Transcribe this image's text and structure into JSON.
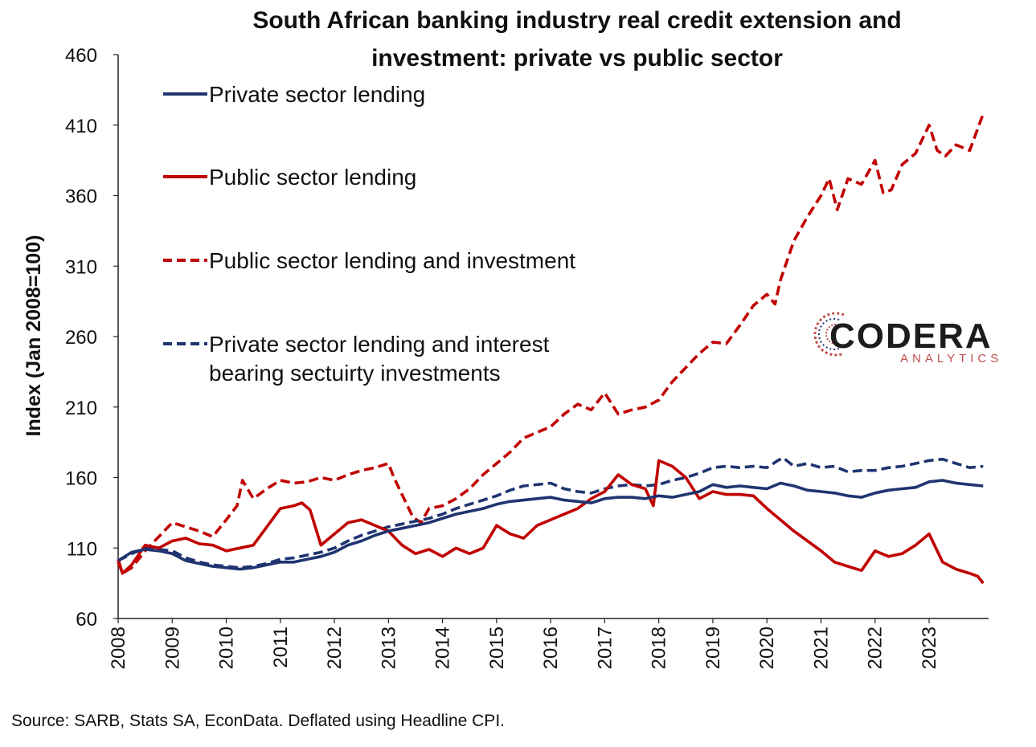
{
  "chart_data": {
    "type": "line",
    "title": "South African banking industry real credit extension and investment: private vs public sector",
    "title_lines": [
      "South African banking industry real credit extension and",
      "investment: private vs public sector"
    ],
    "ylabel": "Index (Jan 2008=100)",
    "xlabel": "",
    "ylim": [
      60,
      460
    ],
    "yticks": [
      60,
      110,
      160,
      210,
      260,
      310,
      360,
      410,
      460
    ],
    "xlim": [
      2008,
      2024.1
    ],
    "xticks": [
      "2008",
      "2009",
      "2010",
      "2011",
      "2012",
      "2013",
      "2014",
      "2015",
      "2016",
      "2017",
      "2018",
      "2019",
      "2020",
      "2021",
      "2022",
      "2023"
    ],
    "grid": false,
    "legend_position": "top-left",
    "source": "Source: SARB, Stats SA, EconData. Deflated using Headline CPI.",
    "logo": {
      "name": "CODERA",
      "sub": "ANALYTICS"
    },
    "series": [
      {
        "name": "Private sector lending",
        "legend_lines": [
          "Private sector lending"
        ],
        "color": "#1f3470",
        "dash": "solid",
        "x": [
          2008.0,
          2008.25,
          2008.5,
          2008.75,
          2009.0,
          2009.25,
          2009.5,
          2009.75,
          2010.0,
          2010.25,
          2010.5,
          2010.75,
          2011.0,
          2011.25,
          2011.5,
          2011.75,
          2012.0,
          2012.25,
          2012.5,
          2012.75,
          2013.0,
          2013.25,
          2013.5,
          2013.75,
          2014.0,
          2014.25,
          2014.5,
          2014.75,
          2015.0,
          2015.25,
          2015.5,
          2015.75,
          2016.0,
          2016.25,
          2016.5,
          2016.75,
          2017.0,
          2017.25,
          2017.5,
          2017.75,
          2018.0,
          2018.25,
          2018.5,
          2018.75,
          2019.0,
          2019.25,
          2019.5,
          2019.75,
          2020.0,
          2020.25,
          2020.5,
          2020.75,
          2021.0,
          2021.25,
          2021.5,
          2021.75,
          2022.0,
          2022.25,
          2022.5,
          2022.75,
          2023.0,
          2023.25,
          2023.5,
          2023.75,
          2024.0
        ],
        "values": [
          101,
          107,
          109,
          108,
          106,
          101,
          99,
          97,
          96,
          95,
          96,
          98,
          100,
          100,
          102,
          104,
          107,
          112,
          115,
          119,
          122,
          124,
          126,
          128,
          131,
          134,
          136,
          138,
          141,
          143,
          144,
          145,
          146,
          144,
          143,
          142,
          145,
          146,
          146,
          145,
          147,
          146,
          148,
          150,
          155,
          153,
          154,
          153,
          152,
          156,
          154,
          151,
          150,
          149,
          147,
          146,
          149,
          151,
          152,
          153,
          157,
          158,
          156,
          155,
          154
        ]
      },
      {
        "name": "Public sector lending",
        "legend_lines": [
          "Public sector lending"
        ],
        "color": "#c00000",
        "dash": "solid",
        "x": [
          2008.0,
          2008.08,
          2008.25,
          2008.5,
          2008.75,
          2009.0,
          2009.25,
          2009.5,
          2009.75,
          2010.0,
          2010.25,
          2010.5,
          2010.75,
          2011.0,
          2011.25,
          2011.4,
          2011.55,
          2011.75,
          2012.0,
          2012.25,
          2012.5,
          2012.75,
          2013.0,
          2013.25,
          2013.5,
          2013.75,
          2014.0,
          2014.25,
          2014.5,
          2014.75,
          2015.0,
          2015.25,
          2015.5,
          2015.75,
          2016.0,
          2016.25,
          2016.5,
          2016.75,
          2017.0,
          2017.25,
          2017.5,
          2017.75,
          2017.9,
          2018.0,
          2018.25,
          2018.5,
          2018.75,
          2019.0,
          2019.25,
          2019.5,
          2019.75,
          2020.0,
          2020.25,
          2020.5,
          2020.75,
          2021.0,
          2021.25,
          2021.5,
          2021.75,
          2022.0,
          2022.25,
          2022.5,
          2022.75,
          2023.0,
          2023.25,
          2023.5,
          2023.75,
          2023.9,
          2024.0
        ],
        "values": [
          102,
          92,
          98,
          112,
          110,
          115,
          117,
          113,
          112,
          108,
          110,
          112,
          125,
          138,
          140,
          142,
          137,
          112,
          120,
          128,
          130,
          126,
          122,
          112,
          106,
          109,
          104,
          110,
          106,
          110,
          126,
          120,
          117,
          126,
          130,
          134,
          138,
          145,
          150,
          162,
          155,
          152,
          140,
          172,
          168,
          160,
          145,
          150,
          148,
          148,
          147,
          138,
          130,
          122,
          115,
          108,
          100,
          97,
          94,
          108,
          104,
          106,
          112,
          120,
          100,
          95,
          92,
          90,
          85
        ]
      },
      {
        "name": "Public sector lending and investment",
        "legend_lines": [
          "Public sector lending and investment"
        ],
        "color": "#c00000",
        "dash": "dashed",
        "x": [
          2008.0,
          2008.08,
          2008.25,
          2008.5,
          2008.75,
          2009.0,
          2009.25,
          2009.5,
          2009.75,
          2010.0,
          2010.2,
          2010.3,
          2010.5,
          2010.75,
          2011.0,
          2011.25,
          2011.5,
          2011.75,
          2012.0,
          2012.25,
          2012.5,
          2012.75,
          2013.0,
          2013.1,
          2013.25,
          2013.45,
          2013.6,
          2013.75,
          2014.0,
          2014.25,
          2014.5,
          2014.75,
          2015.0,
          2015.25,
          2015.5,
          2015.75,
          2016.0,
          2016.25,
          2016.5,
          2016.75,
          2017.0,
          2017.25,
          2017.5,
          2017.75,
          2018.0,
          2018.25,
          2018.5,
          2018.75,
          2019.0,
          2019.25,
          2019.5,
          2019.75,
          2020.0,
          2020.15,
          2020.25,
          2020.5,
          2020.75,
          2021.0,
          2021.15,
          2021.3,
          2021.5,
          2021.75,
          2022.0,
          2022.15,
          2022.3,
          2022.5,
          2022.75,
          2023.0,
          2023.15,
          2023.3,
          2023.5,
          2023.75,
          2024.0
        ],
        "values": [
          100,
          92,
          96,
          108,
          118,
          128,
          125,
          122,
          118,
          130,
          140,
          158,
          145,
          152,
          158,
          156,
          157,
          160,
          158,
          162,
          165,
          167,
          170,
          160,
          148,
          132,
          128,
          138,
          140,
          145,
          152,
          162,
          170,
          178,
          188,
          192,
          196,
          205,
          212,
          208,
          220,
          205,
          208,
          210,
          215,
          228,
          238,
          248,
          256,
          255,
          268,
          282,
          290,
          283,
          300,
          328,
          345,
          360,
          372,
          350,
          372,
          368,
          385,
          362,
          364,
          382,
          390,
          410,
          392,
          388,
          396,
          392,
          418
        ]
      },
      {
        "name": "Private sector lending and interest bearing sectuirty investments",
        "legend_lines": [
          "Private sector lending and interest",
          "bearing sectuirty investments"
        ],
        "color": "#1f3470",
        "dash": "dashed",
        "x": [
          2008.0,
          2008.25,
          2008.5,
          2008.75,
          2009.0,
          2009.25,
          2009.5,
          2009.75,
          2010.0,
          2010.25,
          2010.5,
          2010.75,
          2011.0,
          2011.25,
          2011.5,
          2011.75,
          2012.0,
          2012.25,
          2012.5,
          2012.75,
          2013.0,
          2013.25,
          2013.5,
          2013.75,
          2014.0,
          2014.25,
          2014.5,
          2014.75,
          2015.0,
          2015.25,
          2015.5,
          2015.75,
          2016.0,
          2016.25,
          2016.5,
          2016.75,
          2017.0,
          2017.25,
          2017.5,
          2017.75,
          2018.0,
          2018.25,
          2018.5,
          2018.75,
          2019.0,
          2019.25,
          2019.5,
          2019.75,
          2020.0,
          2020.2,
          2020.3,
          2020.5,
          2020.75,
          2021.0,
          2021.25,
          2021.5,
          2021.75,
          2022.0,
          2022.25,
          2022.5,
          2022.75,
          2023.0,
          2023.25,
          2023.5,
          2023.75,
          2024.0
        ],
        "values": [
          101,
          106,
          110,
          109,
          108,
          103,
          100,
          98,
          97,
          96,
          97,
          99,
          102,
          103,
          105,
          107,
          110,
          115,
          119,
          122,
          125,
          127,
          129,
          131,
          134,
          138,
          141,
          144,
          147,
          151,
          154,
          155,
          156,
          152,
          150,
          149,
          152,
          154,
          155,
          154,
          155,
          158,
          160,
          163,
          167,
          168,
          167,
          168,
          167,
          172,
          174,
          168,
          170,
          167,
          168,
          164,
          165,
          165,
          167,
          168,
          170,
          172,
          173,
          170,
          167,
          168
        ]
      }
    ]
  }
}
